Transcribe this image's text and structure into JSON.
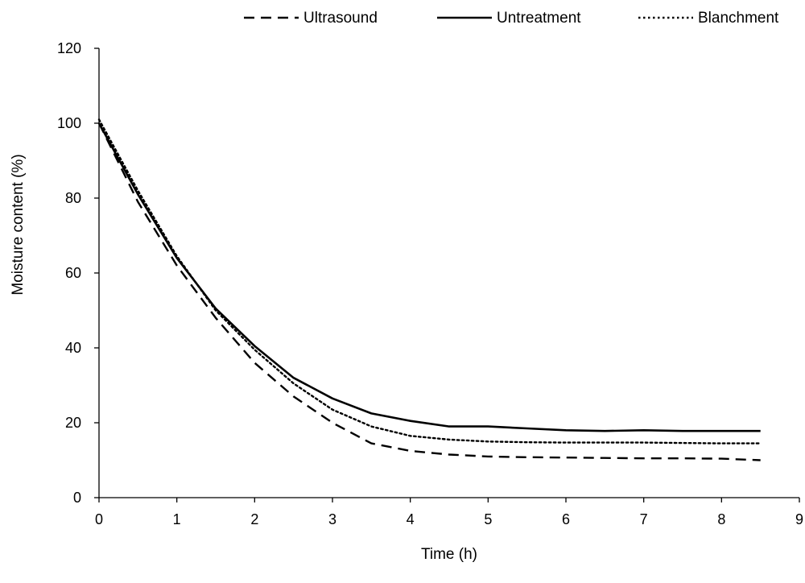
{
  "chart_data": {
    "type": "line",
    "title": "",
    "xlabel": "Time (h)",
    "ylabel": "Moisture content (%)",
    "xlim": [
      0,
      9
    ],
    "ylim": [
      0,
      120
    ],
    "xticks": [
      0,
      1,
      2,
      3,
      4,
      5,
      6,
      7,
      8,
      9
    ],
    "yticks": [
      0,
      20,
      40,
      60,
      80,
      100,
      120
    ],
    "grid": false,
    "legend_position": "top",
    "x": [
      0,
      0.5,
      1,
      1.5,
      2,
      2.5,
      3,
      3.5,
      4,
      4.5,
      5,
      5.5,
      6,
      6.5,
      7,
      7.5,
      8,
      8.5
    ],
    "series": [
      {
        "name": "Ultrasound",
        "style": "dashed",
        "color": "#000000",
        "values": [
          100,
          79,
          62,
          48,
          36,
          27,
          20,
          14.5,
          12.5,
          11.5,
          11,
          10.8,
          10.7,
          10.6,
          10.5,
          10.5,
          10.4,
          10
        ]
      },
      {
        "name": "Untreatment",
        "style": "solid",
        "color": "#000000",
        "values": [
          100,
          81,
          64,
          50.5,
          40.5,
          32,
          26.5,
          22.5,
          20.5,
          19,
          19,
          18.5,
          18,
          17.8,
          18,
          17.8,
          17.8,
          17.8
        ]
      },
      {
        "name": "Blanchment",
        "style": "dotted",
        "color": "#000000",
        "values": [
          101,
          82,
          64.5,
          50,
          39.5,
          30.5,
          23.5,
          19,
          16.5,
          15.5,
          15,
          14.8,
          14.7,
          14.7,
          14.7,
          14.6,
          14.5,
          14.5
        ]
      }
    ]
  }
}
